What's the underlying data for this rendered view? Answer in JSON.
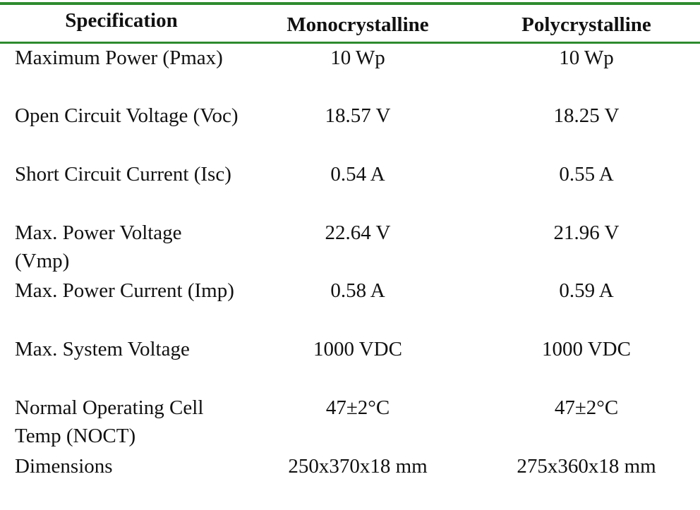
{
  "table": {
    "headers": {
      "spec": "Specification",
      "mono": "Monocrystalline",
      "poly": "Polycrystalline"
    },
    "rows": [
      {
        "spec": "Maximum Power (Pmax)",
        "mono": "10 Wp",
        "poly": "10 Wp"
      },
      {
        "spec": "Open Circuit Voltage (Voc)",
        "mono": "18.57 V",
        "poly": "18.25 V"
      },
      {
        "spec": "Short Circuit Current (Isc)",
        "mono": "0.54 A",
        "poly": "0.55 A"
      },
      {
        "spec": "Max. Power Voltage (Vmp)",
        "mono": "22.64 V",
        "poly": "21.96 V"
      },
      {
        "spec": "Max. Power Current (Imp)",
        "mono": "0.58 A",
        "poly": "0.59 A"
      },
      {
        "spec": "Max. System Voltage",
        "mono": "1000 VDC",
        "poly": "1000 VDC"
      },
      {
        "spec": "Normal Operating Cell Temp (NOCT)",
        "mono": "47±2°C",
        "poly": "47±2°C"
      },
      {
        "spec": "Dimensions",
        "mono": "250x370x18 mm",
        "poly": "275x360x18 mm"
      }
    ]
  }
}
